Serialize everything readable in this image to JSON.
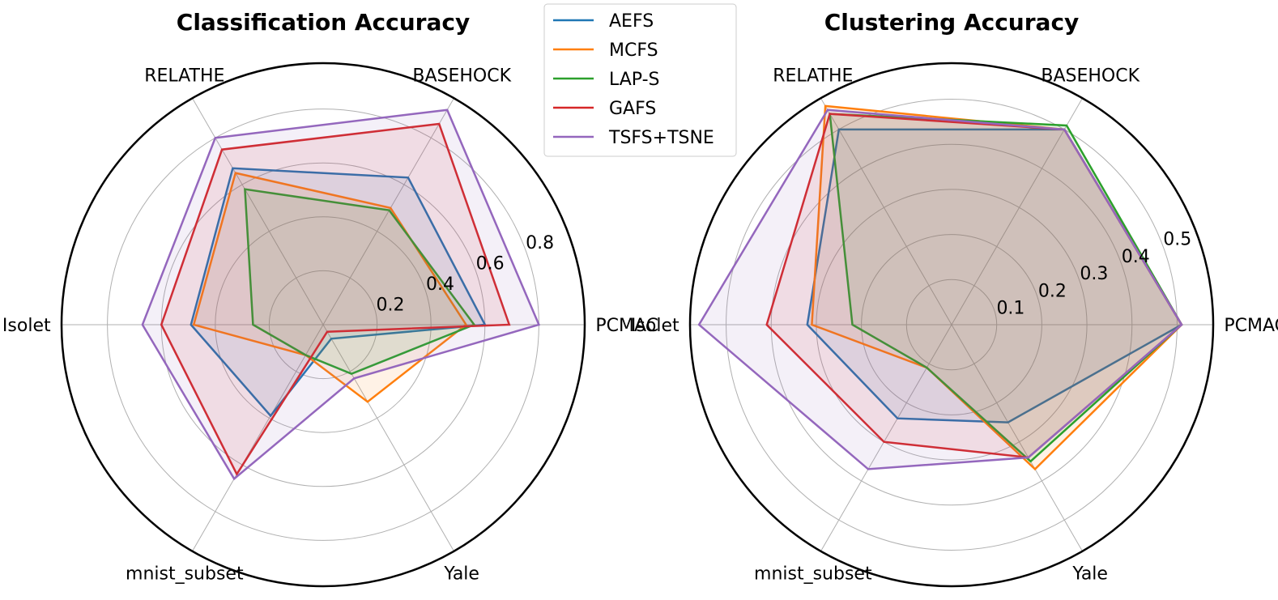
{
  "chart_data": [
    {
      "type": "radar",
      "title": "Classification Accuracy",
      "categories": [
        "PCMAC",
        "BASEHOCK",
        "RELATHE",
        "Isolet",
        "mnist_subset",
        "Yale"
      ],
      "rlim": [
        0,
        0.97
      ],
      "ticks": [
        0.2,
        0.4,
        0.6,
        0.8
      ],
      "tick_labels": [
        "0.2",
        "0.4",
        "0.6",
        "0.8"
      ],
      "series": [
        {
          "name": "AEFS",
          "color": "#1f77b4",
          "values": [
            0.6,
            0.63,
            0.67,
            0.49,
            0.39,
            0.06
          ]
        },
        {
          "name": "MCFS",
          "color": "#ff7f0e",
          "values": [
            0.53,
            0.5,
            0.65,
            0.48,
            0.13,
            0.33
          ]
        },
        {
          "name": "LAP-S",
          "color": "#2ca02c",
          "values": [
            0.56,
            0.49,
            0.58,
            0.26,
            0.13,
            0.21
          ]
        },
        {
          "name": "GAFS",
          "color": "#d62728",
          "values": [
            0.69,
            0.86,
            0.75,
            0.6,
            0.64,
            0.03
          ]
        },
        {
          "name": "TSFS+TSNE",
          "color": "#9467bd",
          "values": [
            0.8,
            0.92,
            0.8,
            0.67,
            0.66,
            0.23
          ]
        }
      ]
    },
    {
      "type": "radar",
      "title": "Clustering Accuracy",
      "categories": [
        "PCMAC",
        "BASEHOCK",
        "RELATHE",
        "Isolet",
        "mnist_subset",
        "Yale"
      ],
      "rlim": [
        0,
        0.58
      ],
      "ticks": [
        0.1,
        0.2,
        0.3,
        0.4,
        0.5
      ],
      "tick_labels": [
        "0.1",
        "0.2",
        "0.3",
        "0.4",
        "0.5"
      ],
      "series": [
        {
          "name": "AEFS",
          "color": "#1f77b4",
          "values": [
            0.51,
            0.5,
            0.5,
            0.32,
            0.24,
            0.25
          ]
        },
        {
          "name": "MCFS",
          "color": "#ff7f0e",
          "values": [
            0.51,
            0.5,
            0.56,
            0.31,
            0.11,
            0.37
          ]
        },
        {
          "name": "LAP-S",
          "color": "#2ca02c",
          "values": [
            0.51,
            0.51,
            0.54,
            0.22,
            0.11,
            0.35
          ]
        },
        {
          "name": "GAFS",
          "color": "#d62728",
          "values": [
            0.51,
            0.5,
            0.54,
            0.41,
            0.3,
            0.34
          ]
        },
        {
          "name": "TSFS+TSNE",
          "color": "#9467bd",
          "values": [
            0.51,
            0.5,
            0.55,
            0.56,
            0.37,
            0.34
          ]
        }
      ]
    }
  ]
}
